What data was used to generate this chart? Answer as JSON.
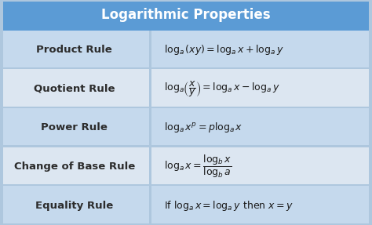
{
  "title": "Logarithmic Properties",
  "title_bg": "#5b9bd5",
  "title_color": "#ffffff",
  "header_fontsize": 12,
  "row_bg_colors": [
    "#c5d9ed",
    "#dce6f1",
    "#c5d9ed",
    "#dce6f1",
    "#c5d9ed"
  ],
  "border_color": "#aec7de",
  "rule_names": [
    "Product Rule",
    "Quotient Rule",
    "Power Rule",
    "Change of Base Rule",
    "Equality Rule"
  ],
  "rule_name_fontsize": 9.5,
  "formula_fontsize": 9,
  "formulas": [
    "$\\log_{a}(xy) = \\log_{a}x+\\log_{a}y$",
    "$\\log_{a}\\!\\left(\\dfrac{x}{y}\\right) = \\log_{a}x - \\log_{a}y$",
    "$\\log_{a}x^{p} = p\\log_{a}x$",
    "$\\log_{a}x = \\dfrac{\\log_{b}x}{\\log_{b}a}$",
    "$\\mathrm{If}\\ \\log_{a}x = \\log_{a}y\\ \\mathrm{then}\\ x = y$"
  ],
  "col_split": 0.4,
  "fig_width": 4.74,
  "fig_height": 2.87,
  "dpi": 100
}
